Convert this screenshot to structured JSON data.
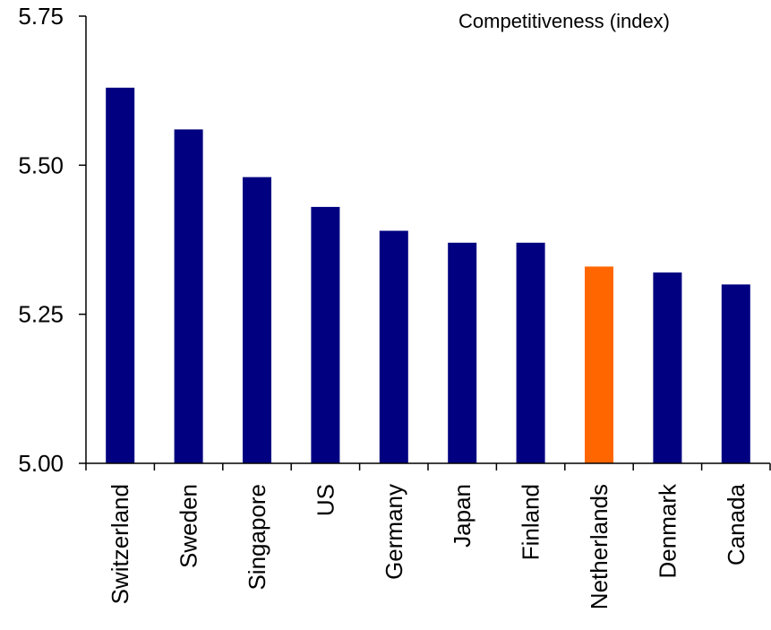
{
  "chart_data": {
    "type": "bar",
    "legend": "Competitiveness (index)",
    "legend_position": "top-right",
    "categories": [
      "Switzerland",
      "Sweden",
      "Singapore",
      "US",
      "Germany",
      "Japan",
      "Finland",
      "Netherlands",
      "Denmark",
      "Canada"
    ],
    "values": [
      5.63,
      5.56,
      5.48,
      5.43,
      5.39,
      5.37,
      5.37,
      5.33,
      5.32,
      5.3
    ],
    "yticks": [
      "5.00",
      "5.25",
      "5.50",
      "5.75"
    ],
    "ylim": [
      5.0,
      5.75
    ],
    "grid": false,
    "colors": {
      "bar": "#000080",
      "highlight": "#ff6600",
      "highlight_category": "Netherlands",
      "axis": "#000000"
    }
  }
}
